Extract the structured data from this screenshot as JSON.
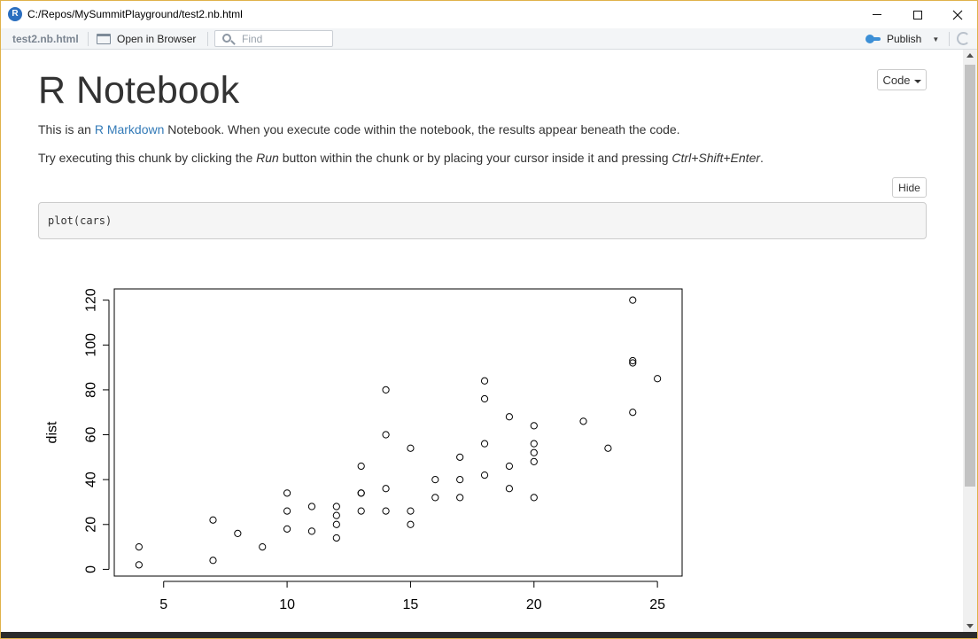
{
  "window": {
    "title": "C:/Repos/MySummitPlayground/test2.nb.html",
    "app_icon_letter": "R"
  },
  "toolbar": {
    "filename": "test2.nb.html",
    "open_in_browser_label": "Open in Browser",
    "find_placeholder": "Find",
    "publish_label": "Publish"
  },
  "notebook": {
    "code_menu_label": "Code",
    "title": "R Notebook",
    "para1_prefix": "This is an ",
    "para1_link": "R Markdown",
    "para1_suffix": " Notebook. When you execute code within the notebook, the results appear beneath the code.",
    "para2_prefix": "Try executing this chunk by clicking the ",
    "para2_run": "Run",
    "para2_middle": " button within the chunk or by placing your cursor inside it and pressing ",
    "para2_keys": "Ctrl+Shift+Enter",
    "para2_suffix": ".",
    "hide_label": "Hide",
    "code": "plot(cars)"
  },
  "chart_data": {
    "type": "scatter",
    "ylabel": "dist",
    "xlim": [
      3,
      26
    ],
    "ylim": [
      -3,
      125
    ],
    "xticks": [
      5,
      10,
      15,
      20,
      25
    ],
    "yticks": [
      0,
      20,
      40,
      60,
      80,
      100,
      120
    ],
    "points": [
      [
        4,
        2
      ],
      [
        4,
        10
      ],
      [
        7,
        4
      ],
      [
        7,
        22
      ],
      [
        8,
        16
      ],
      [
        9,
        10
      ],
      [
        10,
        18
      ],
      [
        10,
        26
      ],
      [
        10,
        34
      ],
      [
        11,
        17
      ],
      [
        11,
        28
      ],
      [
        12,
        14
      ],
      [
        12,
        20
      ],
      [
        12,
        24
      ],
      [
        12,
        28
      ],
      [
        13,
        26
      ],
      [
        13,
        34
      ],
      [
        13,
        34
      ],
      [
        13,
        46
      ],
      [
        14,
        26
      ],
      [
        14,
        36
      ],
      [
        14,
        60
      ],
      [
        14,
        80
      ],
      [
        15,
        20
      ],
      [
        15,
        26
      ],
      [
        15,
        54
      ],
      [
        16,
        32
      ],
      [
        16,
        40
      ],
      [
        17,
        32
      ],
      [
        17,
        40
      ],
      [
        17,
        50
      ],
      [
        18,
        42
      ],
      [
        18,
        56
      ],
      [
        18,
        76
      ],
      [
        18,
        84
      ],
      [
        19,
        36
      ],
      [
        19,
        46
      ],
      [
        19,
        68
      ],
      [
        20,
        32
      ],
      [
        20,
        48
      ],
      [
        20,
        52
      ],
      [
        20,
        56
      ],
      [
        20,
        64
      ],
      [
        22,
        66
      ],
      [
        23,
        54
      ],
      [
        24,
        70
      ],
      [
        24,
        92
      ],
      [
        24,
        93
      ],
      [
        24,
        120
      ],
      [
        25,
        85
      ]
    ]
  }
}
